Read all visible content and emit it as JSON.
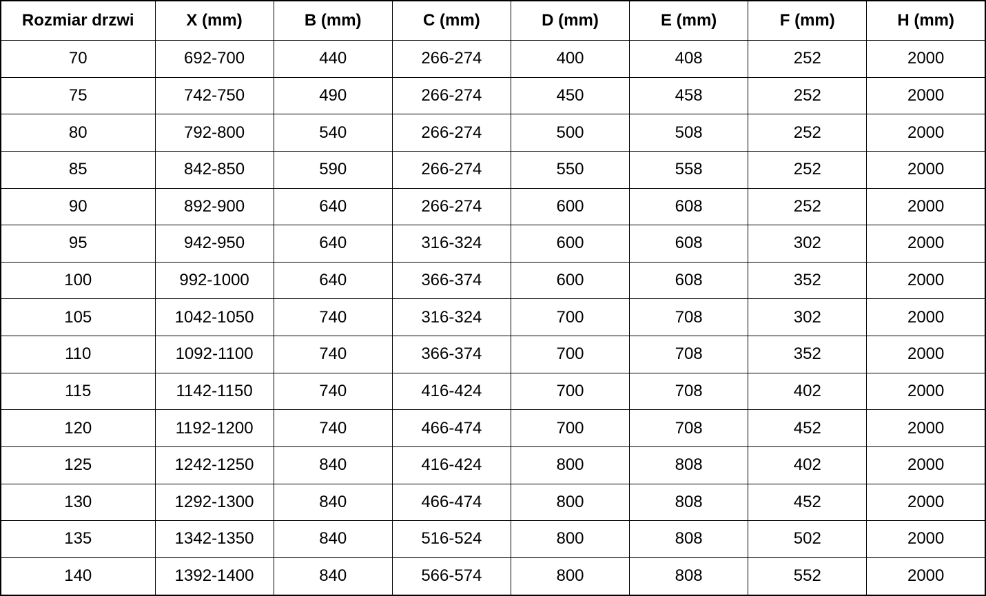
{
  "chart_data": {
    "type": "table",
    "columns": [
      "Rozmiar drzwi",
      "X (mm)",
      "B (mm)",
      "C (mm)",
      "D (mm)",
      "E (mm)",
      "F (mm)",
      "H (mm)"
    ],
    "rows": [
      [
        "70",
        "692-700",
        "440",
        "266-274",
        "400",
        "408",
        "252",
        "2000"
      ],
      [
        "75",
        "742-750",
        "490",
        "266-274",
        "450",
        "458",
        "252",
        "2000"
      ],
      [
        "80",
        "792-800",
        "540",
        "266-274",
        "500",
        "508",
        "252",
        "2000"
      ],
      [
        "85",
        "842-850",
        "590",
        "266-274",
        "550",
        "558",
        "252",
        "2000"
      ],
      [
        "90",
        "892-900",
        "640",
        "266-274",
        "600",
        "608",
        "252",
        "2000"
      ],
      [
        "95",
        "942-950",
        "640",
        "316-324",
        "600",
        "608",
        "302",
        "2000"
      ],
      [
        "100",
        "992-1000",
        "640",
        "366-374",
        "600",
        "608",
        "352",
        "2000"
      ],
      [
        "105",
        "1042-1050",
        "740",
        "316-324",
        "700",
        "708",
        "302",
        "2000"
      ],
      [
        "110",
        "1092-1100",
        "740",
        "366-374",
        "700",
        "708",
        "352",
        "2000"
      ],
      [
        "115",
        "1142-1150",
        "740",
        "416-424",
        "700",
        "708",
        "402",
        "2000"
      ],
      [
        "120",
        "1192-1200",
        "740",
        "466-474",
        "700",
        "708",
        "452",
        "2000"
      ],
      [
        "125",
        "1242-1250",
        "840",
        "416-424",
        "800",
        "808",
        "402",
        "2000"
      ],
      [
        "130",
        "1292-1300",
        "840",
        "466-474",
        "800",
        "808",
        "452",
        "2000"
      ],
      [
        "135",
        "1342-1350",
        "840",
        "516-524",
        "800",
        "808",
        "502",
        "2000"
      ],
      [
        "140",
        "1392-1400",
        "840",
        "566-574",
        "800",
        "808",
        "552",
        "2000"
      ]
    ],
    "layout": {
      "grid": "on",
      "header_style": "bold",
      "first_column_label": "Rozmiar drzwi"
    }
  },
  "colors": {
    "border": "#000000",
    "text": "#000000",
    "background": "#ffffff"
  }
}
